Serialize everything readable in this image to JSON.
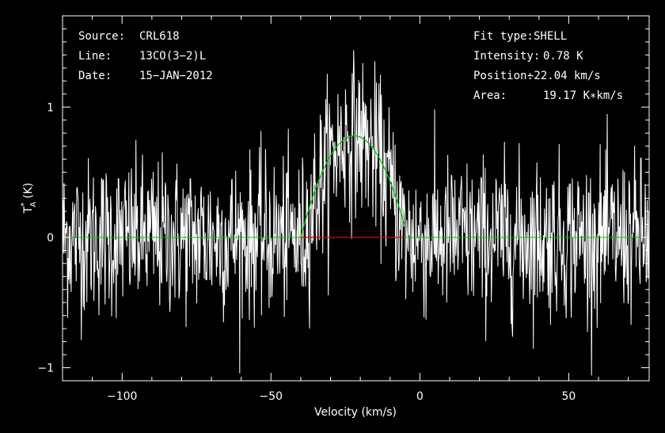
{
  "chart_data": {
    "type": "line",
    "xlabel": "Velocity (km/s)",
    "ylabel_main": "T",
    "ylabel_sub": "A",
    "ylabel_sup": "*",
    "ylabel_unit": "(K)",
    "xlim": [
      -120,
      77
    ],
    "ylim": [
      -1.1,
      1.7
    ],
    "x_ticks": [
      -100,
      -50,
      0,
      50
    ],
    "x_tick_labels": [
      "−100",
      "−50",
      "0",
      "50"
    ],
    "y_ticks": [
      -1,
      0,
      1
    ],
    "y_tick_labels": [
      "−1",
      "0",
      "1"
    ],
    "header_left": [
      {
        "label": "Source:",
        "value": "CRL618"
      },
      {
        "label": "Line:",
        "value": "13CO(3−2)L"
      },
      {
        "label": "Date:",
        "value": "15−JAN−2012"
      }
    ],
    "header_right": [
      {
        "label": "Fit type:",
        "value": "SHELL"
      },
      {
        "label": "Intensity:",
        "value": "0.78 K"
      },
      {
        "label": "Position:",
        "value": "−22.04 km/s"
      },
      {
        "label": "Area:",
        "value": "19.17 K∗km/s"
      }
    ],
    "series": [
      {
        "kind": "noisy-spectrum",
        "color": "#ffffff",
        "noise_sigma": 0.3,
        "signal_center_kms": -22,
        "signal_peak_K": 0.78,
        "signal_halfwidth_kms": 17,
        "channel_width_kms": 0.17
      },
      {
        "kind": "shell-fit",
        "color": "#00c800",
        "center_kms": -22.04,
        "peak_K": 0.78,
        "range_kms": [
          -40,
          -5
        ],
        "baseline_K": 0
      },
      {
        "kind": "fit-window",
        "color": "#e00000",
        "range_kms": [
          -40,
          -5
        ],
        "y_K": 0
      }
    ]
  }
}
